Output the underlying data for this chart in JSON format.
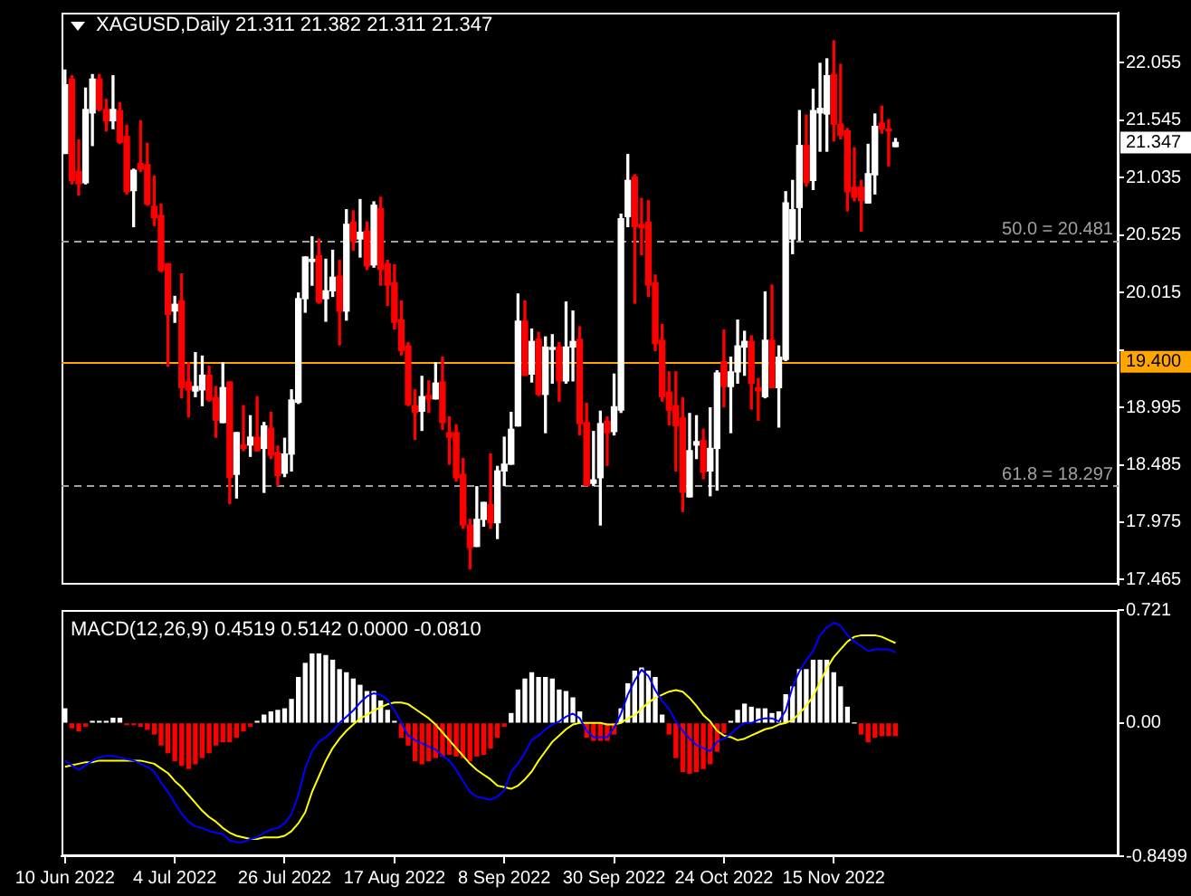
{
  "chart_data": [
    {
      "type": "candlestick",
      "title": "XAGUSD,Daily 21.311 21.382 21.311 21.347",
      "categories": [
        null,
        null,
        null,
        null,
        null,
        null,
        null,
        null,
        null,
        null,
        null,
        null,
        null,
        null,
        null,
        null,
        null,
        null,
        null,
        null,
        null,
        null,
        null,
        null,
        null,
        null,
        null,
        null,
        null,
        null,
        null,
        null,
        null,
        null,
        null,
        null,
        null,
        null,
        null,
        null,
        null,
        null,
        null,
        null,
        null,
        null,
        null,
        null,
        null,
        null,
        null,
        null,
        null,
        null,
        null,
        null,
        null,
        null,
        null,
        null,
        null,
        null,
        null,
        null,
        null,
        null,
        null,
        null,
        null,
        null,
        null,
        null,
        null,
        null,
        null,
        null,
        null,
        null,
        null,
        null,
        null,
        null,
        null,
        null,
        null,
        null,
        null,
        null,
        null,
        null,
        null,
        null,
        null,
        null,
        null,
        null,
        null,
        null,
        null,
        null,
        null,
        null,
        null,
        null,
        null,
        null,
        null,
        null,
        null,
        null,
        null,
        null,
        null,
        null,
        null,
        null,
        null,
        null,
        null,
        null,
        null,
        null,
        null,
        null,
        null,
        null,
        null,
        null,
        null,
        null,
        null,
        null,
        null,
        null,
        null,
        null,
        null,
        null,
        null,
        null,
        null,
        null,
        null,
        null,
        null,
        null,
        null,
        null,
        null,
        null,
        null,
        null,
        null,
        null
      ],
      "ohlc": [
        [
          21.25,
          21.99,
          21.25,
          21.86
        ],
        [
          21.91,
          21.94,
          20.98,
          21.01
        ],
        [
          21.09,
          21.37,
          20.88,
          20.98
        ],
        [
          20.99,
          21.83,
          20.98,
          21.64
        ],
        [
          21.61,
          21.95,
          21.32,
          21.91
        ],
        [
          21.91,
          21.95,
          21.63,
          21.64
        ],
        [
          21.64,
          21.73,
          21.45,
          21.54
        ],
        [
          21.54,
          21.94,
          21.47,
          21.64
        ],
        [
          21.63,
          21.7,
          21.34,
          21.35
        ],
        [
          21.4,
          21.5,
          20.89,
          20.91
        ],
        [
          20.92,
          21.11,
          20.6,
          21.1
        ],
        [
          21.16,
          21.54,
          21.09,
          21.11
        ],
        [
          21.15,
          21.34,
          20.79,
          20.8
        ],
        [
          20.78,
          21.05,
          20.61,
          20.68
        ],
        [
          20.7,
          20.8,
          20.2,
          20.21
        ],
        [
          20.27,
          20.27,
          19.36,
          19.82
        ],
        [
          19.85,
          19.98,
          19.75,
          19.91
        ],
        [
          19.94,
          20.18,
          19.08,
          19.17
        ],
        [
          19.22,
          19.39,
          18.91,
          19.15
        ],
        [
          19.14,
          19.48,
          19.09,
          19.18
        ],
        [
          19.15,
          19.45,
          19.01,
          19.28
        ],
        [
          19.28,
          19.36,
          19.05,
          19.06
        ],
        [
          19.08,
          19.18,
          18.73,
          18.88
        ],
        [
          18.86,
          19.39,
          18.86,
          19.17
        ],
        [
          19.22,
          19.22,
          18.14,
          18.37
        ],
        [
          18.4,
          18.77,
          18.19,
          18.77
        ],
        [
          18.66,
          19.01,
          18.61,
          18.63
        ],
        [
          18.66,
          18.92,
          18.56,
          18.73
        ],
        [
          18.73,
          19.09,
          18.61,
          18.61
        ],
        [
          18.63,
          18.86,
          18.24,
          18.83
        ],
        [
          18.81,
          18.95,
          18.54,
          18.57
        ],
        [
          18.59,
          18.65,
          18.3,
          18.39
        ],
        [
          18.41,
          18.72,
          18.38,
          18.58
        ],
        [
          18.58,
          19.15,
          18.43,
          19.06
        ],
        [
          19.04,
          20.01,
          19.03,
          19.96
        ],
        [
          19.96,
          20.33,
          19.84,
          20.33
        ],
        [
          20.29,
          20.51,
          20.08,
          20.31
        ],
        [
          20.34,
          20.49,
          19.92,
          19.93
        ],
        [
          19.96,
          20.31,
          19.76,
          20.03
        ],
        [
          20.03,
          20.39,
          19.98,
          20.15
        ],
        [
          20.16,
          20.3,
          19.55,
          19.85
        ],
        [
          19.85,
          20.75,
          19.77,
          20.62
        ],
        [
          20.64,
          20.74,
          20.39,
          20.47
        ],
        [
          20.49,
          20.84,
          20.33,
          20.55
        ],
        [
          20.56,
          20.64,
          20.22,
          20.25
        ],
        [
          20.26,
          20.82,
          20.24,
          20.79
        ],
        [
          20.76,
          20.86,
          20.08,
          20.22
        ],
        [
          20.27,
          20.3,
          19.9,
          20.08
        ],
        [
          20.1,
          20.26,
          19.69,
          19.75
        ],
        [
          19.77,
          19.94,
          19.46,
          19.5
        ],
        [
          19.54,
          19.57,
          19.01,
          19.02
        ],
        [
          19.01,
          19.15,
          18.71,
          18.95
        ],
        [
          18.96,
          19.27,
          18.79,
          19.09
        ],
        [
          19.1,
          19.23,
          18.95,
          19.07
        ],
        [
          19.07,
          19.39,
          19.07,
          19.21
        ],
        [
          19.22,
          19.44,
          18.8,
          18.86
        ],
        [
          18.77,
          18.91,
          18.49,
          18.73
        ],
        [
          18.77,
          18.84,
          18.34,
          18.37
        ],
        [
          18.4,
          18.54,
          17.92,
          17.95
        ],
        [
          17.95,
          18.0,
          17.56,
          17.75
        ],
        [
          17.76,
          18.29,
          17.76,
          18.0
        ],
        [
          18.0,
          18.15,
          17.94,
          18.15
        ],
        [
          18.13,
          18.58,
          17.92,
          17.97
        ],
        [
          17.97,
          18.47,
          17.83,
          18.43
        ],
        [
          18.43,
          18.73,
          18.3,
          18.49
        ],
        [
          18.49,
          18.95,
          18.49,
          18.8
        ],
        [
          18.83,
          20.0,
          18.83,
          19.76
        ],
        [
          19.76,
          19.94,
          19.28,
          19.28
        ],
        [
          19.29,
          19.69,
          19.22,
          19.58
        ],
        [
          19.6,
          19.66,
          19.1,
          19.11
        ],
        [
          19.11,
          19.62,
          18.77,
          19.53
        ],
        [
          19.51,
          19.64,
          19.21,
          19.52
        ],
        [
          19.53,
          19.57,
          19.05,
          19.23
        ],
        [
          19.23,
          19.93,
          19.21,
          19.53
        ],
        [
          19.53,
          19.85,
          19.23,
          19.58
        ],
        [
          19.6,
          19.71,
          18.75,
          18.85
        ],
        [
          18.86,
          19.03,
          18.3,
          18.3
        ],
        [
          18.32,
          18.78,
          18.3,
          18.35
        ],
        [
          18.37,
          18.96,
          17.95,
          18.85
        ],
        [
          18.87,
          18.91,
          18.48,
          18.77
        ],
        [
          18.78,
          19.29,
          18.75,
          19.0
        ],
        [
          18.97,
          20.71,
          18.95,
          20.67
        ],
        [
          20.69,
          21.24,
          20.6,
          21.01
        ],
        [
          21.04,
          21.06,
          19.92,
          20.6
        ],
        [
          20.62,
          20.85,
          20.35,
          20.59
        ],
        [
          20.64,
          20.83,
          19.98,
          20.08
        ],
        [
          20.1,
          20.17,
          19.5,
          19.56
        ],
        [
          19.59,
          19.73,
          19.05,
          19.09
        ],
        [
          19.13,
          19.31,
          18.84,
          18.97
        ],
        [
          19.01,
          19.31,
          18.43,
          18.83
        ],
        [
          18.9,
          19.08,
          18.07,
          18.24
        ],
        [
          18.2,
          18.94,
          18.2,
          18.61
        ],
        [
          18.66,
          18.92,
          18.54,
          18.69
        ],
        [
          18.7,
          18.8,
          18.36,
          18.42
        ],
        [
          18.43,
          18.99,
          18.21,
          18.63
        ],
        [
          18.63,
          19.32,
          18.26,
          19.3
        ],
        [
          19.4,
          19.68,
          19.0,
          19.18
        ],
        [
          19.18,
          19.44,
          18.77,
          19.31
        ],
        [
          19.31,
          19.77,
          19.21,
          19.54
        ],
        [
          19.53,
          19.67,
          19.28,
          19.58
        ],
        [
          19.58,
          19.63,
          18.98,
          19.21
        ],
        [
          19.17,
          19.25,
          18.88,
          19.14
        ],
        [
          19.09,
          20.02,
          19.08,
          19.59
        ],
        [
          19.59,
          20.08,
          19.17,
          19.17
        ],
        [
          19.17,
          19.54,
          18.82,
          19.44
        ],
        [
          19.42,
          20.91,
          19.41,
          20.81
        ],
        [
          20.49,
          21.01,
          20.36,
          20.75
        ],
        [
          20.77,
          21.63,
          20.48,
          21.32
        ],
        [
          21.32,
          21.59,
          20.96,
          20.99
        ],
        [
          21.01,
          21.82,
          20.93,
          21.63
        ],
        [
          21.61,
          22.05,
          21.27,
          21.65
        ],
        [
          21.6,
          22.09,
          21.27,
          21.94
        ],
        [
          21.95,
          22.25,
          21.36,
          21.51
        ],
        [
          21.51,
          22.04,
          21.38,
          21.41
        ],
        [
          21.45,
          21.47,
          20.74,
          20.91
        ],
        [
          20.95,
          21.3,
          20.83,
          20.86
        ],
        [
          20.95,
          21.01,
          20.56,
          20.83
        ],
        [
          20.81,
          21.33,
          20.81,
          21.07
        ],
        [
          21.06,
          21.6,
          20.89,
          21.49
        ],
        [
          21.52,
          21.67,
          21.43,
          21.47
        ],
        [
          21.46,
          21.55,
          21.14,
          21.45
        ],
        [
          21.311,
          21.382,
          21.311,
          21.347
        ],
        null,
        null,
        null,
        null,
        null,
        null,
        null,
        null,
        null,
        null,
        null,
        null,
        null,
        null,
        null,
        null,
        null,
        null,
        null,
        null,
        null,
        null,
        null,
        null,
        null,
        null,
        null,
        null,
        null,
        null,
        null,
        null
      ],
      "colors": [
        "#ffffff",
        "#ff0000",
        "#ff0000",
        "#ffffff",
        "#ffffff",
        "#ff0000",
        "#ff0000",
        "#ffffff",
        "#ff0000",
        "#ff0000",
        "#ffffff",
        "#ff0000",
        "#ff0000",
        "#ff0000",
        "#ff0000",
        "#ff0000",
        "#ffffff",
        "#ff0000",
        "#ff0000",
        "#ffffff",
        "#ffffff",
        "#ff0000",
        "#ff0000",
        "#ffffff",
        "#ff0000",
        "#ffffff",
        "#ff0000",
        "#ffffff",
        "#ff0000",
        "#ffffff",
        "#ff0000",
        "#ff0000",
        "#ffffff",
        "#ffffff",
        "#ffffff",
        "#ffffff",
        "#ffffff",
        "#ff0000",
        "#ffffff",
        "#ffffff",
        "#ff0000",
        "#ffffff",
        "#ff0000",
        "#ffffff",
        "#ff0000",
        "#ffffff",
        "#ff0000",
        "#ff0000",
        "#ff0000",
        "#ff0000",
        "#ff0000",
        "#ff0000",
        "#ffffff",
        "#ff0000",
        "#ffffff",
        "#ff0000",
        "#ff0000",
        "#ff0000",
        "#ff0000",
        "#ff0000",
        "#ffffff",
        "#ffffff",
        "#ff0000",
        "#ffffff",
        "#ffffff",
        "#ffffff",
        "#ffffff",
        "#ff0000",
        "#ffffff",
        "#ff0000",
        "#ffffff",
        "#ffffff",
        "#ff0000",
        "#ffffff",
        "#ffffff",
        "#ff0000",
        "#ff0000",
        "#ffffff",
        "#ffffff",
        "#ff0000",
        "#ffffff",
        "#ffffff",
        "#ffffff",
        "#ff0000",
        "#ff0000",
        "#ff0000",
        "#ff0000",
        "#ff0000",
        "#ff0000",
        "#ff0000",
        "#ff0000",
        "#ffffff",
        "#ffffff",
        "#ff0000",
        "#ffffff",
        "#ffffff",
        "#ff0000",
        "#ffffff",
        "#ffffff",
        "#ffffff",
        "#ff0000",
        "#ff0000",
        "#ffffff",
        "#ff0000",
        "#ffffff",
        "#ffffff",
        "#ffffff",
        "#ffffff",
        "#ff0000",
        "#ffffff",
        "#ffffff",
        "#ffffff",
        "#ff0000",
        "#ff0000",
        "#ff0000",
        "#ff0000",
        "#ff0000",
        "#ffffff",
        "#ffffff",
        "#ff0000",
        "#ff0000",
        "#ffffff",
        null,
        null,
        null,
        null,
        null,
        null,
        null,
        null,
        null,
        null,
        null,
        null,
        null,
        null,
        null,
        null,
        null,
        null,
        null,
        null,
        null,
        null,
        null,
        null,
        null,
        null,
        null,
        null,
        null,
        null,
        null,
        null
      ],
      "ylim": [
        17.42,
        22.5
      ],
      "yticks": [
        17.465,
        17.975,
        18.485,
        18.995,
        {
          "value": 19.505,
          "label": null
        },
        20.015,
        20.525,
        21.035,
        21.545,
        22.055
      ],
      "tick_labels": "y",
      "ref_lines": [
        {
          "axis": "y",
          "value": 20.481,
          "label": "50.0 = 20.481",
          "color": "#a0a0a0",
          "line_style": "dashed"
        },
        {
          "axis": "y",
          "value": 19.4,
          "label": "19.400",
          "color": "#ffa500",
          "line_style": "solid"
        },
        {
          "axis": "y",
          "value": 18.297,
          "label": "61.8 = 18.297",
          "color": "#a0a0a0",
          "line_style": "dashed"
        }
      ],
      "annotations": [
        {
          "text": "21.347",
          "y": 21.347
        }
      ]
    },
    {
      "type": "bar",
      "title": "MACD(12,26,9) 0.4519 0.5142 0.0000 -0.0810",
      "categories": [
        "10 Jun 2022",
        null,
        null,
        null,
        null,
        null,
        null,
        null,
        null,
        null,
        null,
        null,
        null,
        null,
        null,
        null,
        "4 Jul 2022",
        null,
        null,
        null,
        null,
        null,
        null,
        null,
        null,
        null,
        null,
        null,
        null,
        null,
        null,
        null,
        "26 Jul 2022",
        null,
        null,
        null,
        null,
        null,
        null,
        null,
        null,
        null,
        null,
        null,
        null,
        null,
        null,
        null,
        "17 Aug 2022",
        null,
        null,
        null,
        null,
        null,
        null,
        null,
        null,
        null,
        null,
        null,
        null,
        null,
        null,
        null,
        "8 Sep 2022",
        null,
        null,
        null,
        null,
        null,
        null,
        null,
        null,
        null,
        null,
        null,
        null,
        null,
        null,
        null,
        "30 Sep 2022",
        null,
        null,
        null,
        null,
        null,
        null,
        null,
        null,
        null,
        null,
        null,
        null,
        null,
        null,
        null,
        "24 Oct 2022",
        null,
        null,
        null,
        null,
        null,
        null,
        null,
        null,
        null,
        null,
        null,
        null,
        null,
        null,
        null,
        "15 Nov 2022",
        null,
        null,
        null,
        null,
        null,
        null,
        null,
        null,
        null,
        null,
        null,
        null,
        null,
        null,
        null,
        null,
        null,
        null,
        null,
        null,
        null,
        null,
        null,
        null,
        null,
        null,
        null,
        null,
        null,
        null,
        null,
        null,
        null,
        null,
        null,
        null,
        null,
        null,
        null,
        null,
        null
      ],
      "series": [
        {
          "type": "bar",
          "colors": [
            "#ffffff",
            "#ff0000",
            "#ff0000",
            "#ff0000",
            "#ffffff",
            "#ffffff",
            "#ffffff",
            "#ffffff",
            "#ffffff",
            "#ff0000",
            "#ff0000",
            "#ff0000",
            "#ff0000",
            "#ff0000",
            "#ff0000",
            "#ff0000",
            "#ff0000",
            "#ff0000",
            "#ff0000",
            "#ff0000",
            "#ff0000",
            "#ff0000",
            "#ff0000",
            "#ff0000",
            "#ff0000",
            "#ff0000",
            "#ff0000",
            "#ff0000",
            "#ffffff",
            "#ffffff",
            "#ffffff",
            "#ffffff",
            "#ffffff",
            "#ffffff",
            "#ffffff",
            "#ffffff",
            "#ffffff",
            "#ffffff",
            "#ffffff",
            "#ffffff",
            "#ffffff",
            "#ffffff",
            "#ffffff",
            "#ffffff",
            "#ffffff",
            "#ffffff",
            "#ffffff",
            "#ffffff",
            "#ffffff",
            "#ff0000",
            "#ff0000",
            "#ff0000",
            "#ff0000",
            "#ff0000",
            "#ff0000",
            "#ff0000",
            "#ff0000",
            "#ff0000",
            "#ff0000",
            "#ff0000",
            "#ff0000",
            "#ff0000",
            "#ff0000",
            "#ff0000",
            "#ff0000",
            "#ffffff",
            "#ffffff",
            "#ffffff",
            "#ffffff",
            "#ffffff",
            "#ffffff",
            "#ffffff",
            "#ffffff",
            "#ffffff",
            "#ffffff",
            "#ffffff",
            "#ff0000",
            "#ff0000",
            "#ff0000",
            "#ff0000",
            "#ff0000",
            "#ffffff",
            "#ffffff",
            "#ffffff",
            "#ffffff",
            "#ffffff",
            "#ffffff",
            "#ffffff",
            "#ff0000",
            "#ff0000",
            "#ff0000",
            "#ff0000",
            "#ff0000",
            "#ff0000",
            "#ff0000",
            "#ff0000",
            "#ff0000",
            "#ffffff",
            "#ffffff",
            "#ffffff",
            "#ffffff",
            "#ffffff",
            "#ffffff",
            "#ffffff",
            "#ffffff",
            "#ffffff",
            "#ffffff",
            "#ffffff",
            "#ffffff",
            "#ffffff",
            "#ffffff",
            "#ffffff",
            "#ffffff",
            "#ffffff",
            "#ffffff",
            "#ffffff",
            "#ff0000",
            "#ff0000",
            "#ff0000",
            "#ff0000",
            "#ff0000",
            "#ff0000",
            null,
            null,
            null,
            null,
            null,
            null,
            null,
            null,
            null,
            null,
            null,
            null,
            null,
            null,
            null,
            null,
            null,
            null,
            null,
            null,
            null,
            null,
            null,
            null,
            null,
            null,
            null,
            null,
            null,
            null,
            null,
            null
          ],
          "values": [
            0.09,
            -0.03,
            -0.05,
            -0.02,
            0.01,
            0.01,
            0.01,
            0.03,
            0.03,
            -0.01,
            -0.01,
            -0.02,
            -0.04,
            -0.07,
            -0.14,
            -0.19,
            -0.24,
            -0.27,
            -0.29,
            -0.26,
            -0.22,
            -0.19,
            -0.14,
            -0.12,
            -0.12,
            -0.09,
            -0.05,
            -0.02,
            0.01,
            0.05,
            0.07,
            0.08,
            0.09,
            0.15,
            0.29,
            0.38,
            0.44,
            0.44,
            0.43,
            0.4,
            0.34,
            0.32,
            0.28,
            0.24,
            0.2,
            0.2,
            0.14,
            0.08,
            0.01,
            -0.09,
            -0.14,
            -0.24,
            -0.26,
            -0.24,
            -0.22,
            -0.21,
            -0.2,
            -0.21,
            -0.22,
            -0.24,
            -0.21,
            -0.2,
            -0.16,
            -0.09,
            -0.02,
            0.06,
            0.21,
            0.28,
            0.32,
            0.29,
            0.29,
            0.28,
            0.21,
            0.2,
            0.16,
            0.07,
            -0.09,
            -0.11,
            -0.11,
            -0.11,
            -0.07,
            0.09,
            0.25,
            0.33,
            0.35,
            0.33,
            0.29,
            0.05,
            -0.07,
            -0.22,
            -0.31,
            -0.32,
            -0.31,
            -0.29,
            -0.26,
            -0.18,
            -0.06,
            0.01,
            0.08,
            0.12,
            0.1,
            0.09,
            0.09,
            0.06,
            0.07,
            0.18,
            0.23,
            0.34,
            0.34,
            0.4,
            0.4,
            0.4,
            0.32,
            0.23,
            0.1,
            0,
            -0.07,
            -0.12,
            -0.09,
            -0.08,
            -0.08,
            -0.08,
            null,
            null,
            null,
            null,
            null,
            null,
            null,
            null,
            null,
            null,
            null,
            null,
            null,
            null,
            null,
            null,
            null,
            null,
            null,
            null,
            null,
            null,
            null,
            null,
            null,
            null,
            null,
            null,
            null,
            null,
            null,
            null
          ]
        },
        {
          "type": "line",
          "color": "#0000ff",
          "values": [
            -0.24,
            -0.27,
            -0.3,
            -0.27,
            -0.24,
            -0.22,
            -0.21,
            -0.21,
            -0.22,
            -0.23,
            -0.24,
            -0.26,
            -0.28,
            -0.31,
            -0.38,
            -0.44,
            -0.51,
            -0.58,
            -0.63,
            -0.66,
            -0.67,
            -0.69,
            -0.7,
            -0.71,
            -0.75,
            -0.76,
            -0.76,
            -0.74,
            -0.73,
            -0.7,
            -0.68,
            -0.67,
            -0.64,
            -0.58,
            -0.46,
            -0.29,
            -0.18,
            -0.12,
            -0.09,
            -0.05,
            0.0,
            0.04,
            0.08,
            0.13,
            0.17,
            0.19,
            0.18,
            0.15,
            0.08,
            0.0,
            -0.08,
            -0.11,
            -0.13,
            -0.15,
            -0.17,
            -0.21,
            -0.24,
            -0.3,
            -0.37,
            -0.44,
            -0.47,
            -0.48,
            -0.49,
            -0.47,
            -0.43,
            -0.31,
            -0.26,
            -0.19,
            -0.11,
            -0.08,
            -0.04,
            -0.01,
            0.01,
            0.04,
            0.06,
            0.03,
            -0.05,
            -0.09,
            -0.09,
            -0.09,
            -0.03,
            0.06,
            0.18,
            0.27,
            0.34,
            0.3,
            0.21,
            0.14,
            0.09,
            0.01,
            -0.05,
            -0.1,
            -0.14,
            -0.16,
            -0.18,
            -0.12,
            -0.1,
            -0.07,
            -0.03,
            0.0,
            0.0,
            0.02,
            0.03,
            0.03,
            0.01,
            0.08,
            0.23,
            0.33,
            0.4,
            0.46,
            0.56,
            0.61,
            0.64,
            0.62,
            0.56,
            0.52,
            0.49,
            0.46,
            0.47,
            0.47,
            0.47,
            0.45,
            null,
            null,
            null,
            null,
            null,
            null,
            null,
            null,
            null,
            null,
            null,
            null,
            null,
            null,
            null,
            null,
            null,
            null,
            null,
            null,
            null,
            null,
            null,
            null,
            null,
            null,
            null,
            null,
            null,
            null,
            null,
            null
          ]
        },
        {
          "type": "line",
          "color": "#ffff00",
          "values": [
            -0.28,
            -0.27,
            -0.26,
            -0.25,
            -0.25,
            -0.24,
            -0.24,
            -0.24,
            -0.24,
            -0.24,
            -0.24,
            -0.24,
            -0.25,
            -0.26,
            -0.29,
            -0.32,
            -0.37,
            -0.41,
            -0.46,
            -0.51,
            -0.56,
            -0.6,
            -0.63,
            -0.67,
            -0.7,
            -0.72,
            -0.73,
            -0.74,
            -0.74,
            -0.73,
            -0.73,
            -0.73,
            -0.72,
            -0.69,
            -0.64,
            -0.57,
            -0.44,
            -0.34,
            -0.24,
            -0.16,
            -0.1,
            -0.05,
            -0.01,
            0.03,
            0.05,
            0.08,
            0.1,
            0.12,
            0.13,
            0.13,
            0.12,
            0.09,
            0.06,
            0.03,
            -0.01,
            -0.06,
            -0.11,
            -0.16,
            -0.21,
            -0.26,
            -0.3,
            -0.33,
            -0.36,
            -0.4,
            -0.41,
            -0.42,
            -0.4,
            -0.36,
            -0.31,
            -0.24,
            -0.18,
            -0.12,
            -0.08,
            -0.04,
            -0.01,
            0.0,
            0.0,
            0.0,
            0.0,
            -0.01,
            -0.01,
            0.0,
            0.03,
            0.05,
            0.09,
            0.13,
            0.16,
            0.18,
            0.2,
            0.21,
            0.2,
            0.16,
            0.11,
            0.05,
            0.01,
            -0.05,
            -0.08,
            -0.09,
            -0.11,
            -0.1,
            -0.08,
            -0.06,
            -0.04,
            -0.03,
            -0.01,
            0.0,
            0.02,
            0.06,
            0.11,
            0.17,
            0.26,
            0.35,
            0.42,
            0.47,
            0.52,
            0.55,
            0.56,
            0.56,
            0.56,
            0.55,
            0.53,
            0.51,
            null,
            null,
            null,
            null,
            null,
            null,
            null,
            null,
            null,
            null,
            null,
            null,
            null,
            null,
            null,
            null,
            null,
            null,
            null,
            null,
            null,
            null,
            null,
            null,
            null,
            null,
            null,
            null,
            null,
            null,
            null,
            null
          ]
        }
      ],
      "ylim": [
        -0.8499,
        0.721
      ],
      "yticks": [
        -0.8499,
        {
          "value": 0,
          "label": "0.00"
        },
        0.721
      ]
    }
  ]
}
